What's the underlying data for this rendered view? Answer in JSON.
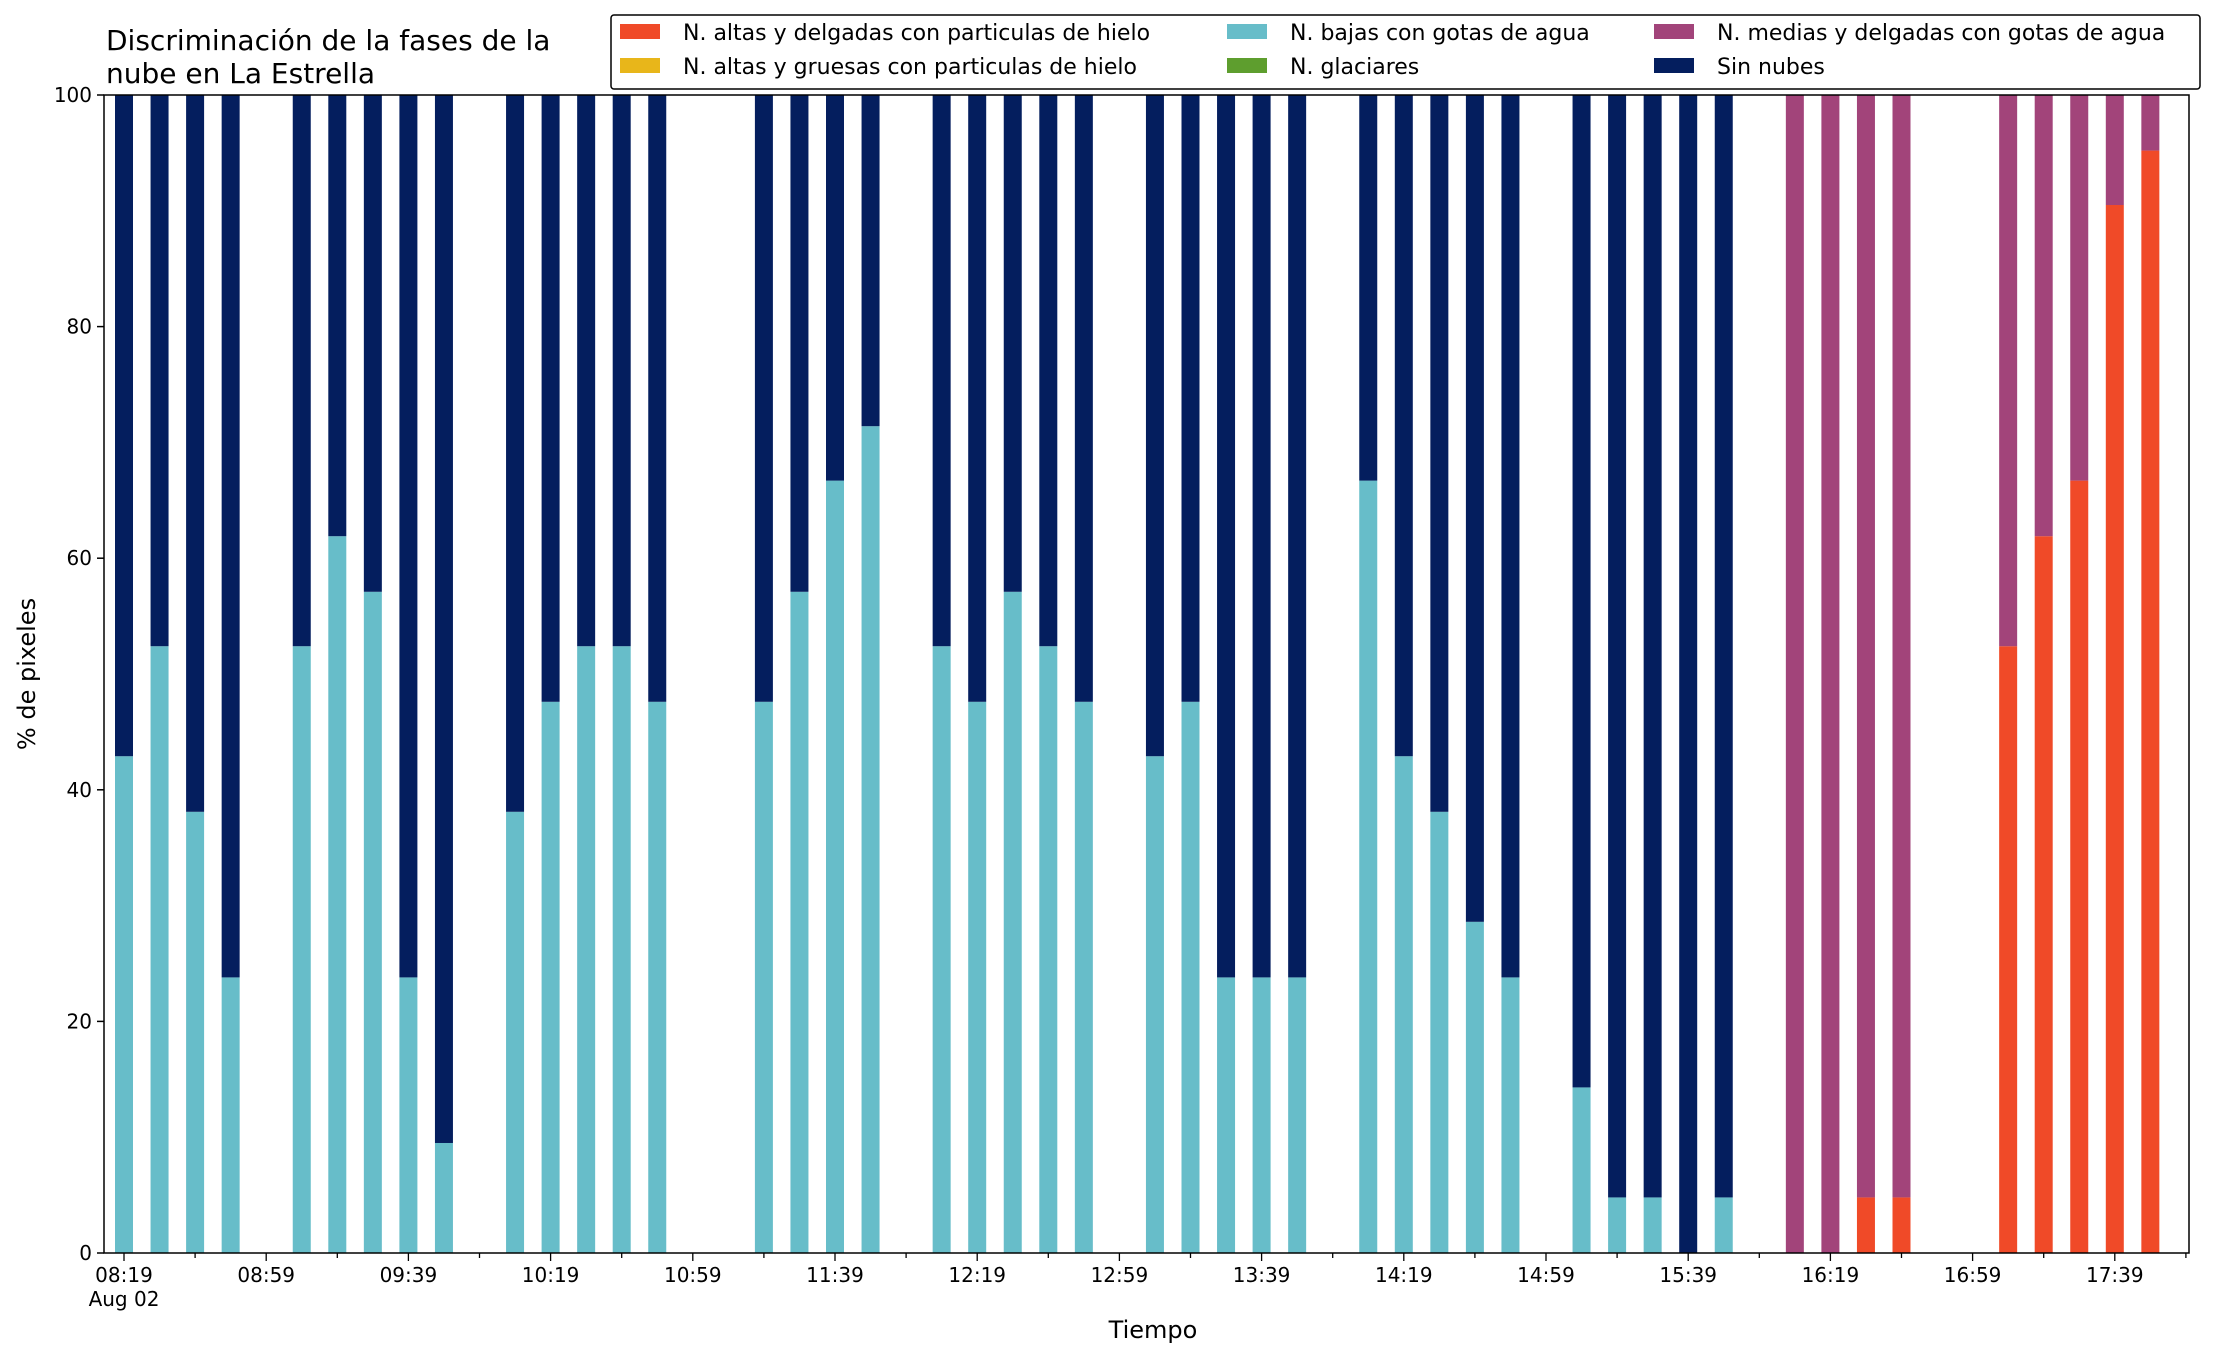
{
  "chart_data": {
    "type": "bar",
    "stacked": true,
    "title_lines": [
      "Discriminación de la fases de la",
      "nube en La Estrella"
    ],
    "xlabel": "Tiempo",
    "ylabel": "% de pixeles",
    "ylim": [
      0,
      100
    ],
    "yticks": [
      "0",
      "20",
      "40",
      "60",
      "80",
      "100"
    ],
    "x_range": [
      "08:19",
      "17:59"
    ],
    "x_step_minutes": 10,
    "x_tick_labels": [
      {
        "time": "08:19",
        "label": "08:19",
        "sublabel": "Aug 02"
      },
      {
        "time": "08:59",
        "label": "08:59"
      },
      {
        "time": "09:39",
        "label": "09:39"
      },
      {
        "time": "10:19",
        "label": "10:19"
      },
      {
        "time": "10:59",
        "label": "10:59"
      },
      {
        "time": "11:39",
        "label": "11:39"
      },
      {
        "time": "12:19",
        "label": "12:19"
      },
      {
        "time": "12:59",
        "label": "12:59"
      },
      {
        "time": "13:39",
        "label": "13:39"
      },
      {
        "time": "14:19",
        "label": "14:19"
      },
      {
        "time": "14:59",
        "label": "14:59"
      },
      {
        "time": "15:39",
        "label": "15:39"
      },
      {
        "time": "16:19",
        "label": "16:19"
      },
      {
        "time": "16:59",
        "label": "16:59"
      },
      {
        "time": "17:39",
        "label": "17:39"
      }
    ],
    "legend_position": "top-right",
    "series": [
      {
        "name": "N. altas y delgadas con particulas de hielo",
        "color": "#f04a28"
      },
      {
        "name": "N. altas y gruesas con particulas de hielo",
        "color": "#e8b61a"
      },
      {
        "name": "N. bajas con gotas de agua",
        "color": "#67bdc9"
      },
      {
        "name": "N. glaciares",
        "color": "#5e9e2e"
      },
      {
        "name": "N. medias y delgadas con gotas de agua",
        "color": "#a2447a"
      },
      {
        "name": "Sin nubes",
        "color": "#041e5e"
      }
    ],
    "stack_order": [
      "N. bajas con gotas de agua",
      "N. altas y delgadas con particulas de hielo",
      "N. medias y delgadas con gotas de agua",
      "Sin nubes",
      "N. altas y gruesas con particulas de hielo",
      "N. glaciares"
    ],
    "bars": [
      {
        "time": "08:19",
        "values": {
          "N. bajas con gotas de agua": 42.9,
          "Sin nubes": 57.1
        }
      },
      {
        "time": "08:29",
        "values": {
          "N. bajas con gotas de agua": 52.4,
          "Sin nubes": 47.6
        }
      },
      {
        "time": "08:39",
        "values": {
          "N. bajas con gotas de agua": 38.1,
          "Sin nubes": 61.9
        }
      },
      {
        "time": "08:49",
        "values": {
          "N. bajas con gotas de agua": 23.8,
          "Sin nubes": 76.2
        }
      },
      {
        "time": "09:09",
        "values": {
          "N. bajas con gotas de agua": 52.4,
          "Sin nubes": 47.6
        }
      },
      {
        "time": "09:19",
        "values": {
          "N. bajas con gotas de agua": 61.9,
          "Sin nubes": 38.1
        }
      },
      {
        "time": "09:29",
        "values": {
          "N. bajas con gotas de agua": 57.1,
          "Sin nubes": 42.9
        }
      },
      {
        "time": "09:39",
        "values": {
          "N. bajas con gotas de agua": 23.8,
          "Sin nubes": 76.2
        }
      },
      {
        "time": "09:49",
        "values": {
          "N. bajas con gotas de agua": 9.5,
          "Sin nubes": 90.5
        }
      },
      {
        "time": "10:09",
        "values": {
          "N. bajas con gotas de agua": 38.1,
          "Sin nubes": 61.9
        }
      },
      {
        "time": "10:19",
        "values": {
          "N. bajas con gotas de agua": 47.6,
          "Sin nubes": 52.4
        }
      },
      {
        "time": "10:29",
        "values": {
          "N. bajas con gotas de agua": 52.4,
          "Sin nubes": 47.6
        }
      },
      {
        "time": "10:39",
        "values": {
          "N. bajas con gotas de agua": 52.4,
          "Sin nubes": 47.6
        }
      },
      {
        "time": "10:49",
        "values": {
          "N. bajas con gotas de agua": 47.6,
          "Sin nubes": 52.4
        }
      },
      {
        "time": "11:19",
        "values": {
          "N. bajas con gotas de agua": 47.6,
          "Sin nubes": 52.4
        }
      },
      {
        "time": "11:29",
        "values": {
          "N. bajas con gotas de agua": 57.1,
          "Sin nubes": 42.9
        }
      },
      {
        "time": "11:39",
        "values": {
          "N. bajas con gotas de agua": 66.7,
          "Sin nubes": 33.3
        }
      },
      {
        "time": "11:49",
        "values": {
          "N. bajas con gotas de agua": 71.4,
          "Sin nubes": 28.6
        }
      },
      {
        "time": "12:09",
        "values": {
          "N. bajas con gotas de agua": 52.4,
          "Sin nubes": 47.6
        }
      },
      {
        "time": "12:19",
        "values": {
          "N. bajas con gotas de agua": 47.6,
          "Sin nubes": 52.4
        }
      },
      {
        "time": "12:29",
        "values": {
          "N. bajas con gotas de agua": 57.1,
          "Sin nubes": 42.9
        }
      },
      {
        "time": "12:39",
        "values": {
          "N. bajas con gotas de agua": 52.4,
          "Sin nubes": 47.6
        }
      },
      {
        "time": "12:49",
        "values": {
          "N. bajas con gotas de agua": 47.6,
          "Sin nubes": 52.4
        }
      },
      {
        "time": "13:09",
        "values": {
          "N. bajas con gotas de agua": 42.9,
          "Sin nubes": 57.1
        }
      },
      {
        "time": "13:19",
        "values": {
          "N. bajas con gotas de agua": 47.6,
          "Sin nubes": 52.4
        }
      },
      {
        "time": "13:29",
        "values": {
          "N. bajas con gotas de agua": 23.8,
          "Sin nubes": 76.2
        }
      },
      {
        "time": "13:39",
        "values": {
          "N. bajas con gotas de agua": 23.8,
          "Sin nubes": 76.2
        }
      },
      {
        "time": "13:49",
        "values": {
          "N. bajas con gotas de agua": 23.8,
          "Sin nubes": 76.2
        }
      },
      {
        "time": "14:09",
        "values": {
          "N. bajas con gotas de agua": 66.7,
          "Sin nubes": 33.3
        }
      },
      {
        "time": "14:19",
        "values": {
          "N. bajas con gotas de agua": 42.9,
          "Sin nubes": 57.1
        }
      },
      {
        "time": "14:29",
        "values": {
          "N. bajas con gotas de agua": 38.1,
          "Sin nubes": 61.9
        }
      },
      {
        "time": "14:39",
        "values": {
          "N. bajas con gotas de agua": 28.6,
          "Sin nubes": 71.4
        }
      },
      {
        "time": "14:49",
        "values": {
          "N. bajas con gotas de agua": 23.8,
          "Sin nubes": 76.2
        }
      },
      {
        "time": "15:09",
        "values": {
          "N. bajas con gotas de agua": 14.3,
          "Sin nubes": 85.7
        }
      },
      {
        "time": "15:19",
        "values": {
          "N. bajas con gotas de agua": 4.8,
          "Sin nubes": 95.2
        }
      },
      {
        "time": "15:29",
        "values": {
          "N. bajas con gotas de agua": 4.8,
          "Sin nubes": 95.2
        }
      },
      {
        "time": "15:39",
        "values": {
          "Sin nubes": 100
        }
      },
      {
        "time": "15:49",
        "values": {
          "N. bajas con gotas de agua": 4.8,
          "Sin nubes": 95.2
        }
      },
      {
        "time": "16:09",
        "values": {
          "N. medias y delgadas con gotas de agua": 100
        }
      },
      {
        "time": "16:19",
        "values": {
          "N. medias y delgadas con gotas de agua": 100
        }
      },
      {
        "time": "16:29",
        "values": {
          "N. altas y delgadas con particulas de hielo": 4.8,
          "N. medias y delgadas con gotas de agua": 95.2
        }
      },
      {
        "time": "16:39",
        "values": {
          "N. altas y delgadas con particulas de hielo": 4.8,
          "N. medias y delgadas con gotas de agua": 95.2
        }
      },
      {
        "time": "17:09",
        "values": {
          "N. altas y delgadas con particulas de hielo": 52.4,
          "N. medias y delgadas con gotas de agua": 47.6
        }
      },
      {
        "time": "17:19",
        "values": {
          "N. altas y delgadas con particulas de hielo": 61.9,
          "N. medias y delgadas con gotas de agua": 38.1
        }
      },
      {
        "time": "17:29",
        "values": {
          "N. altas y delgadas con particulas de hielo": 66.7,
          "N. medias y delgadas con gotas de agua": 33.3
        }
      },
      {
        "time": "17:39",
        "values": {
          "N. altas y delgadas con particulas de hielo": 90.5,
          "N. medias y delgadas con gotas de agua": 9.5
        }
      },
      {
        "time": "17:49",
        "values": {
          "N. altas y delgadas con particulas de hielo": 95.2,
          "N. medias y delgadas con gotas de agua": 4.8
        }
      }
    ]
  }
}
